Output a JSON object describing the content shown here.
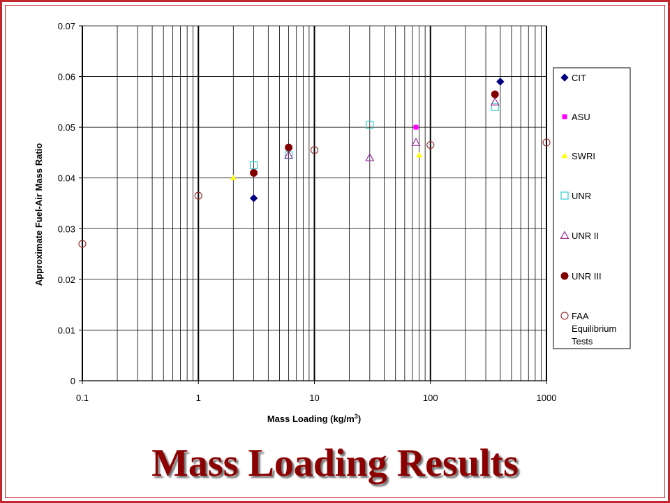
{
  "slide": {
    "title": "Mass Loading Results",
    "title_color": "#8b0000",
    "frame_color": "#c0282d"
  },
  "chart_data": {
    "type": "scatter",
    "title": "",
    "xlabel": "Mass Loading (kg/m",
    "xlabel_sup": "3",
    "xlabel_end": ")",
    "ylabel": "Approximate Fuel-Air Mass Ratio",
    "xscale": "log",
    "xlim": [
      0.1,
      1000
    ],
    "ylim": [
      0,
      0.07
    ],
    "x_ticks": [
      "0.1",
      "1",
      "10",
      "100",
      "1000"
    ],
    "y_ticks": [
      "0",
      "0.01",
      "0.02",
      "0.03",
      "0.04",
      "0.05",
      "0.06",
      "0.07"
    ],
    "grid": true,
    "legend_position": "right",
    "series": [
      {
        "name": "CIT",
        "marker": "diamond",
        "color": "#000080",
        "filled": true,
        "points": [
          [
            3,
            0.036
          ],
          [
            400,
            0.059
          ]
        ]
      },
      {
        "name": "ASU",
        "marker": "square",
        "color": "#ff00ff",
        "filled": true,
        "points": [
          [
            75,
            0.05
          ]
        ]
      },
      {
        "name": "SWRI",
        "marker": "triangle",
        "color": "#ffff00",
        "filled": true,
        "points": [
          [
            2,
            0.04
          ],
          [
            80,
            0.0445
          ]
        ]
      },
      {
        "name": "UNR",
        "marker": "square",
        "color": "#33cccc",
        "filled": false,
        "points": [
          [
            3,
            0.0425
          ],
          [
            6,
            0.0445
          ],
          [
            30,
            0.0505
          ],
          [
            360,
            0.054
          ]
        ]
      },
      {
        "name": "UNR II",
        "marker": "triangle",
        "color": "#993399",
        "filled": false,
        "points": [
          [
            6,
            0.0445
          ],
          [
            30,
            0.044
          ],
          [
            75,
            0.047
          ],
          [
            360,
            0.055
          ]
        ]
      },
      {
        "name": "UNR III",
        "marker": "circle",
        "color": "#800000",
        "filled": true,
        "points": [
          [
            3,
            0.041
          ],
          [
            6,
            0.046
          ],
          [
            360,
            0.0565
          ]
        ]
      },
      {
        "name": "FAA Equilibrium Tests",
        "name_lines": [
          "FAA",
          "Equilibrium",
          "Tests"
        ],
        "marker": "circle",
        "color": "#993333",
        "filled": false,
        "points": [
          [
            0.1,
            0.027
          ],
          [
            1,
            0.0365
          ],
          [
            10,
            0.0455
          ],
          [
            100,
            0.0465
          ],
          [
            1000,
            0.047
          ]
        ]
      }
    ]
  }
}
